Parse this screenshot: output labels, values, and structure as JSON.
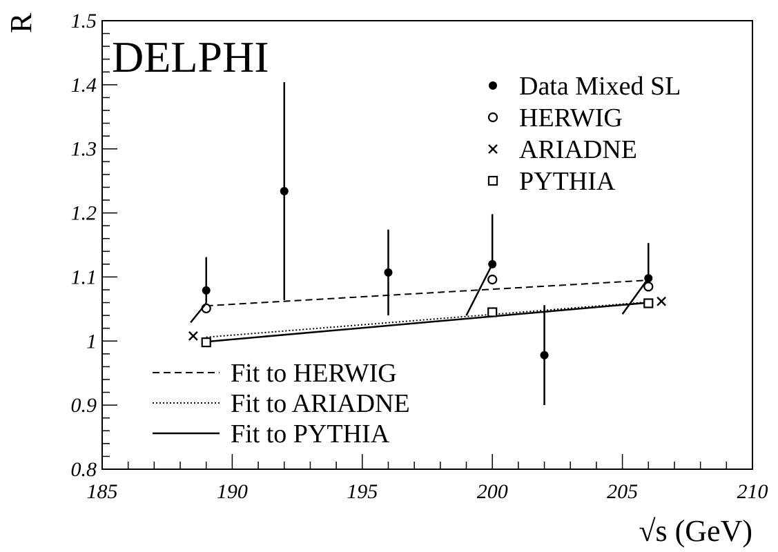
{
  "chart_data": {
    "type": "scatter",
    "experiment_label": "DELPHI",
    "xlabel": "√s (GeV)",
    "ylabel": "R",
    "xlim": [
      185,
      210
    ],
    "ylim": [
      0.8,
      1.5
    ],
    "x_ticks": [
      "185",
      "190",
      "195",
      "200",
      "205",
      "210"
    ],
    "y_ticks": [
      "0.8",
      "0.9",
      "1",
      "1.1",
      "1.2",
      "1.3",
      "1.4",
      "1.5"
    ],
    "grid": false,
    "legend_markers": {
      "placement": "top-right",
      "entries": [
        {
          "label": "Data Mixed SL",
          "marker": "filled-circle"
        },
        {
          "label": "HERWIG",
          "marker": "open-circle"
        },
        {
          "label": "ARIADNE",
          "marker": "cross"
        },
        {
          "label": "PYTHIA",
          "marker": "open-square"
        }
      ]
    },
    "legend_fits": {
      "placement": "bottom-left",
      "entries": [
        {
          "label": "Fit to HERWIG",
          "style": "dashed"
        },
        {
          "label": "Fit to ARIADNE",
          "style": "dotted"
        },
        {
          "label": "Fit to PYTHIA",
          "style": "solid"
        }
      ]
    },
    "data_points": [
      {
        "x": 189,
        "y": 1.079,
        "err_low": 0.02,
        "err_high": 0.052
      },
      {
        "x": 192,
        "y": 1.234,
        "err_low": 0.17,
        "err_high": 0.17
      },
      {
        "x": 196,
        "y": 1.107,
        "err_low": 0.067,
        "err_high": 0.067
      },
      {
        "x": 200,
        "y": 1.12,
        "err_low": 0.0,
        "err_high": 0.078
      },
      {
        "x": 202,
        "y": 0.978,
        "err_low": 0.078,
        "err_high": 0.078
      },
      {
        "x": 206,
        "y": 1.098,
        "err_low": 0.0,
        "err_high": 0.055
      }
    ],
    "error_slant_segments": [
      {
        "x1": 188.4,
        "y1": 1.029,
        "x2": 189,
        "y2": 1.059
      },
      {
        "x1": 199.0,
        "y1": 1.04,
        "x2": 200,
        "y2": 1.12
      },
      {
        "x1": 205.0,
        "y1": 1.042,
        "x2": 206,
        "y2": 1.098
      }
    ],
    "series": [
      {
        "name": "HERWIG",
        "marker": "open-circle",
        "points": [
          {
            "x": 189,
            "y": 1.051
          },
          {
            "x": 200,
            "y": 1.096
          },
          {
            "x": 206,
            "y": 1.085
          }
        ]
      },
      {
        "name": "ARIADNE",
        "marker": "cross",
        "points": [
          {
            "x": 188.5,
            "y": 1.008
          },
          {
            "x": 206.5,
            "y": 1.062
          }
        ]
      },
      {
        "name": "PYTHIA",
        "marker": "open-square",
        "points": [
          {
            "x": 189,
            "y": 0.998
          },
          {
            "x": 200,
            "y": 1.045
          },
          {
            "x": 206,
            "y": 1.059
          }
        ]
      }
    ],
    "fits": [
      {
        "name": "Fit to HERWIG",
        "style": "dashed",
        "x": [
          189,
          206
        ],
        "y": [
          1.055,
          1.095
        ]
      },
      {
        "name": "Fit to ARIADNE",
        "style": "dotted",
        "x": [
          189,
          206
        ],
        "y": [
          1.006,
          1.061
        ]
      },
      {
        "name": "Fit to PYTHIA",
        "style": "solid",
        "x": [
          189,
          206
        ],
        "y": [
          0.999,
          1.06
        ]
      }
    ]
  }
}
